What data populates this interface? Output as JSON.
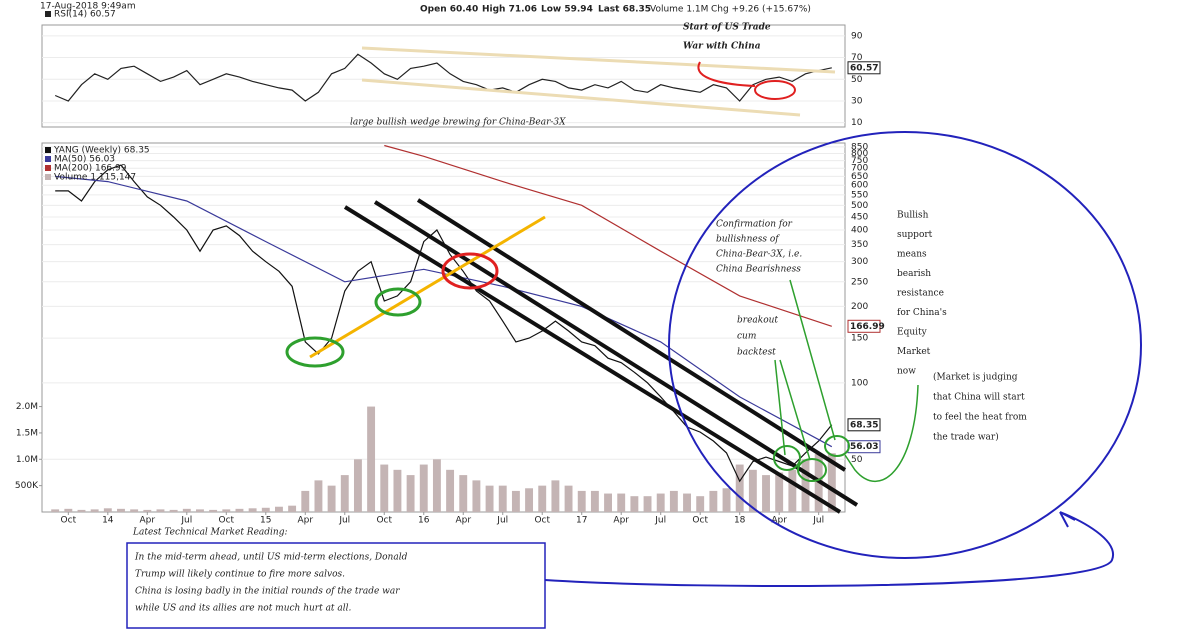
{
  "header": {
    "timestamp": "17-Aug-2018 9:49am",
    "open": "Open 60.40",
    "high": "High 71.06",
    "low": "Low 59.94",
    "last": "Last 68.35",
    "volume": "Volume 1.1M",
    "change": "Chg +9.26 (+15.67%)"
  },
  "chart_data": [
    {
      "type": "line",
      "log_scale": false,
      "xlim": [
        "2013-08",
        "2018-09"
      ],
      "ylim": [
        6,
        100
      ],
      "yticks": [
        10,
        30,
        50,
        70,
        90
      ],
      "series": [
        {
          "name": "RSI(14) 60.57",
          "color": "#222222",
          "x": [
            "2013-09",
            "2013-10",
            "2013-11",
            "2013-12",
            "2014-01",
            "2014-02",
            "2014-03",
            "2014-04",
            "2014-05",
            "2014-06",
            "2014-07",
            "2014-08",
            "2014-09",
            "2014-10",
            "2014-11",
            "2014-12",
            "2015-01",
            "2015-02",
            "2015-03",
            "2015-04",
            "2015-05",
            "2015-06",
            "2015-07",
            "2015-08",
            "2015-09",
            "2015-10",
            "2015-11",
            "2015-12",
            "2016-01",
            "2016-02",
            "2016-03",
            "2016-04",
            "2016-05",
            "2016-06",
            "2016-07",
            "2016-08",
            "2016-09",
            "2016-10",
            "2016-11",
            "2016-12",
            "2017-01",
            "2017-02",
            "2017-03",
            "2017-04",
            "2017-05",
            "2017-06",
            "2017-07",
            "2017-08",
            "2017-09",
            "2017-10",
            "2017-11",
            "2017-12",
            "2018-01",
            "2018-02",
            "2018-03",
            "2018-04",
            "2018-05",
            "2018-06",
            "2018-07",
            "2018-08"
          ],
          "values": [
            35,
            30,
            45,
            55,
            50,
            60,
            62,
            55,
            48,
            52,
            58,
            45,
            50,
            55,
            52,
            48,
            45,
            42,
            40,
            30,
            38,
            55,
            60,
            73,
            65,
            55,
            50,
            60,
            62,
            65,
            55,
            48,
            45,
            40,
            42,
            38,
            45,
            50,
            48,
            42,
            40,
            45,
            42,
            48,
            40,
            38,
            45,
            42,
            40,
            38,
            45,
            42,
            30,
            45,
            50,
            52,
            48,
            55,
            58,
            60.57
          ]
        }
      ]
    },
    {
      "type": "line",
      "log_scale": true,
      "xlim": [
        "2013-08",
        "2018-09"
      ],
      "ylim": [
        31,
        880
      ],
      "yticks": [
        50,
        100,
        150,
        200,
        250,
        300,
        350,
        400,
        450,
        500,
        550,
        600,
        650,
        700,
        750,
        800,
        850
      ],
      "y2lim": [
        0,
        7000000
      ],
      "y2ticks": [
        {
          "value": 500000,
          "label": "500K"
        },
        {
          "value": 1000000,
          "label": "1.0M"
        },
        {
          "value": 1500000,
          "label": "1.5M"
        },
        {
          "value": 2000000,
          "label": "2.0M"
        }
      ],
      "xticks": [
        {
          "value": "2013-10",
          "label": "Oct"
        },
        {
          "value": "2014-01",
          "label": "14"
        },
        {
          "value": "2014-04",
          "label": "Apr"
        },
        {
          "value": "2014-07",
          "label": "Jul"
        },
        {
          "value": "2014-10",
          "label": "Oct"
        },
        {
          "value": "2015-01",
          "label": "15"
        },
        {
          "value": "2015-04",
          "label": "Apr"
        },
        {
          "value": "2015-07",
          "label": "Jul"
        },
        {
          "value": "2015-10",
          "label": "Oct"
        },
        {
          "value": "2016-01",
          "label": "16"
        },
        {
          "value": "2016-04",
          "label": "Apr"
        },
        {
          "value": "2016-07",
          "label": "Jul"
        },
        {
          "value": "2016-10",
          "label": "Oct"
        },
        {
          "value": "2017-01",
          "label": "17"
        },
        {
          "value": "2017-04",
          "label": "Apr"
        },
        {
          "value": "2017-07",
          "label": "Jul"
        },
        {
          "value": "2017-10",
          "label": "Oct"
        },
        {
          "value": "2018-01",
          "label": "18"
        },
        {
          "value": "2018-04",
          "label": "Apr"
        },
        {
          "value": "2018-07",
          "label": "Jul"
        }
      ],
      "series": [
        {
          "name": "YANG (Weekly) 68.35",
          "color": "#111111",
          "x": [
            "2013-09",
            "2013-10",
            "2013-11",
            "2013-12",
            "2014-01",
            "2014-02",
            "2014-03",
            "2014-04",
            "2014-05",
            "2014-06",
            "2014-07",
            "2014-08",
            "2014-09",
            "2014-10",
            "2014-11",
            "2014-12",
            "2015-01",
            "2015-02",
            "2015-03",
            "2015-04",
            "2015-05",
            "2015-06",
            "2015-07",
            "2015-08",
            "2015-09",
            "2015-10",
            "2015-11",
            "2015-12",
            "2016-01",
            "2016-02",
            "2016-03",
            "2016-04",
            "2016-05",
            "2016-06",
            "2016-07",
            "2016-08",
            "2016-09",
            "2016-10",
            "2016-11",
            "2016-12",
            "2017-01",
            "2017-02",
            "2017-03",
            "2017-04",
            "2017-05",
            "2017-06",
            "2017-07",
            "2017-08",
            "2017-09",
            "2017-10",
            "2017-11",
            "2017-12",
            "2018-01",
            "2018-02",
            "2018-03",
            "2018-04",
            "2018-05",
            "2018-06",
            "2018-07",
            "2018-08"
          ],
          "values": [
            570,
            570,
            520,
            620,
            690,
            720,
            620,
            540,
            500,
            450,
            400,
            330,
            400,
            415,
            380,
            330,
            300,
            275,
            240,
            145,
            130,
            150,
            230,
            275,
            300,
            210,
            220,
            250,
            360,
            400,
            320,
            275,
            230,
            210,
            175,
            145,
            150,
            160,
            175,
            160,
            145,
            140,
            125,
            120,
            110,
            100,
            88,
            77,
            67,
            64,
            59,
            53,
            41,
            49,
            51,
            49,
            47,
            53,
            59,
            68.35
          ]
        },
        {
          "name": "MA(50) 56.03",
          "color": "#3a3a9a",
          "x": [
            "2013-09",
            "2014-01",
            "2014-07",
            "2015-01",
            "2015-07",
            "2016-01",
            "2016-07",
            "2017-01",
            "2017-07",
            "2018-01",
            "2018-08"
          ],
          "values": [
            650,
            620,
            520,
            360,
            250,
            280,
            240,
            200,
            145,
            88,
            56.03
          ]
        },
        {
          "name": "MA(200) 166.99",
          "color": "#b03030",
          "x": [
            "2015-10",
            "2016-01",
            "2016-07",
            "2017-01",
            "2017-07",
            "2018-01",
            "2018-08"
          ],
          "values": [
            860,
            780,
            620,
            500,
            330,
            220,
            166.99
          ]
        },
        {
          "name": "Volume 1,115,147",
          "color": "#c4b4b4",
          "type": "bar",
          "axis": "y2",
          "x": [
            "2013-09",
            "2013-10",
            "2013-11",
            "2013-12",
            "2014-01",
            "2014-02",
            "2014-03",
            "2014-04",
            "2014-05",
            "2014-06",
            "2014-07",
            "2014-08",
            "2014-09",
            "2014-10",
            "2014-11",
            "2014-12",
            "2015-01",
            "2015-02",
            "2015-03",
            "2015-04",
            "2015-05",
            "2015-06",
            "2015-07",
            "2015-08",
            "2015-09",
            "2015-10",
            "2015-11",
            "2015-12",
            "2016-01",
            "2016-02",
            "2016-03",
            "2016-04",
            "2016-05",
            "2016-06",
            "2016-07",
            "2016-08",
            "2016-09",
            "2016-10",
            "2016-11",
            "2016-12",
            "2017-01",
            "2017-02",
            "2017-03",
            "2017-04",
            "2017-05",
            "2017-06",
            "2017-07",
            "2017-08",
            "2017-09",
            "2017-10",
            "2017-11",
            "2017-12",
            "2018-01",
            "2018-02",
            "2018-03",
            "2018-04",
            "2018-05",
            "2018-06",
            "2018-07",
            "2018-08"
          ],
          "values": [
            50000,
            60000,
            40000,
            50000,
            70000,
            60000,
            50000,
            40000,
            50000,
            40000,
            60000,
            50000,
            40000,
            50000,
            60000,
            70000,
            80000,
            100000,
            120000,
            400000,
            600000,
            500000,
            700000,
            1000000,
            2000000,
            900000,
            800000,
            700000,
            900000,
            1000000,
            800000,
            700000,
            600000,
            500000,
            500000,
            400000,
            450000,
            500000,
            600000,
            500000,
            400000,
            400000,
            350000,
            350000,
            300000,
            300000,
            350000,
            400000,
            350000,
            300000,
            400000,
            450000,
            900000,
            800000,
            700000,
            750000,
            800000,
            1000000,
            1100000,
            1115147
          ]
        }
      ]
    }
  ],
  "annotations": {
    "trade_war": {
      "lines": [
        "Start of US Trade",
        "War with China"
      ]
    },
    "wedge": {
      "lines": [
        "large bullish wedge brewing for China-Bear-3X"
      ]
    },
    "confirmation": {
      "lines": [
        "Confirmation for",
        "bullishness of",
        "China-Bear-3X, i.e.",
        "China Bearishness"
      ]
    },
    "breakout": {
      "lines": [
        "breakout",
        "cum",
        "backtest"
      ]
    },
    "support": {
      "lines": [
        "Bullish",
        "support",
        "means",
        "bearish",
        "resistance",
        "for China's",
        "Equity",
        "Market",
        "now"
      ]
    },
    "judging": {
      "lines": [
        "(Market is judging",
        "that China will start",
        "to feel the heat from",
        "the trade war)"
      ]
    },
    "reading_title": {
      "lines": [
        "Latest Technical Market Reading:"
      ]
    },
    "reading": {
      "lines": [
        "In the mid-term ahead, until US mid-term elections, Donald",
        "Trump will likely continue to fire more salvos.",
        "China is losing badly in the initial rounds of the trade war",
        "while US and its allies are not much hurt at all."
      ]
    }
  }
}
